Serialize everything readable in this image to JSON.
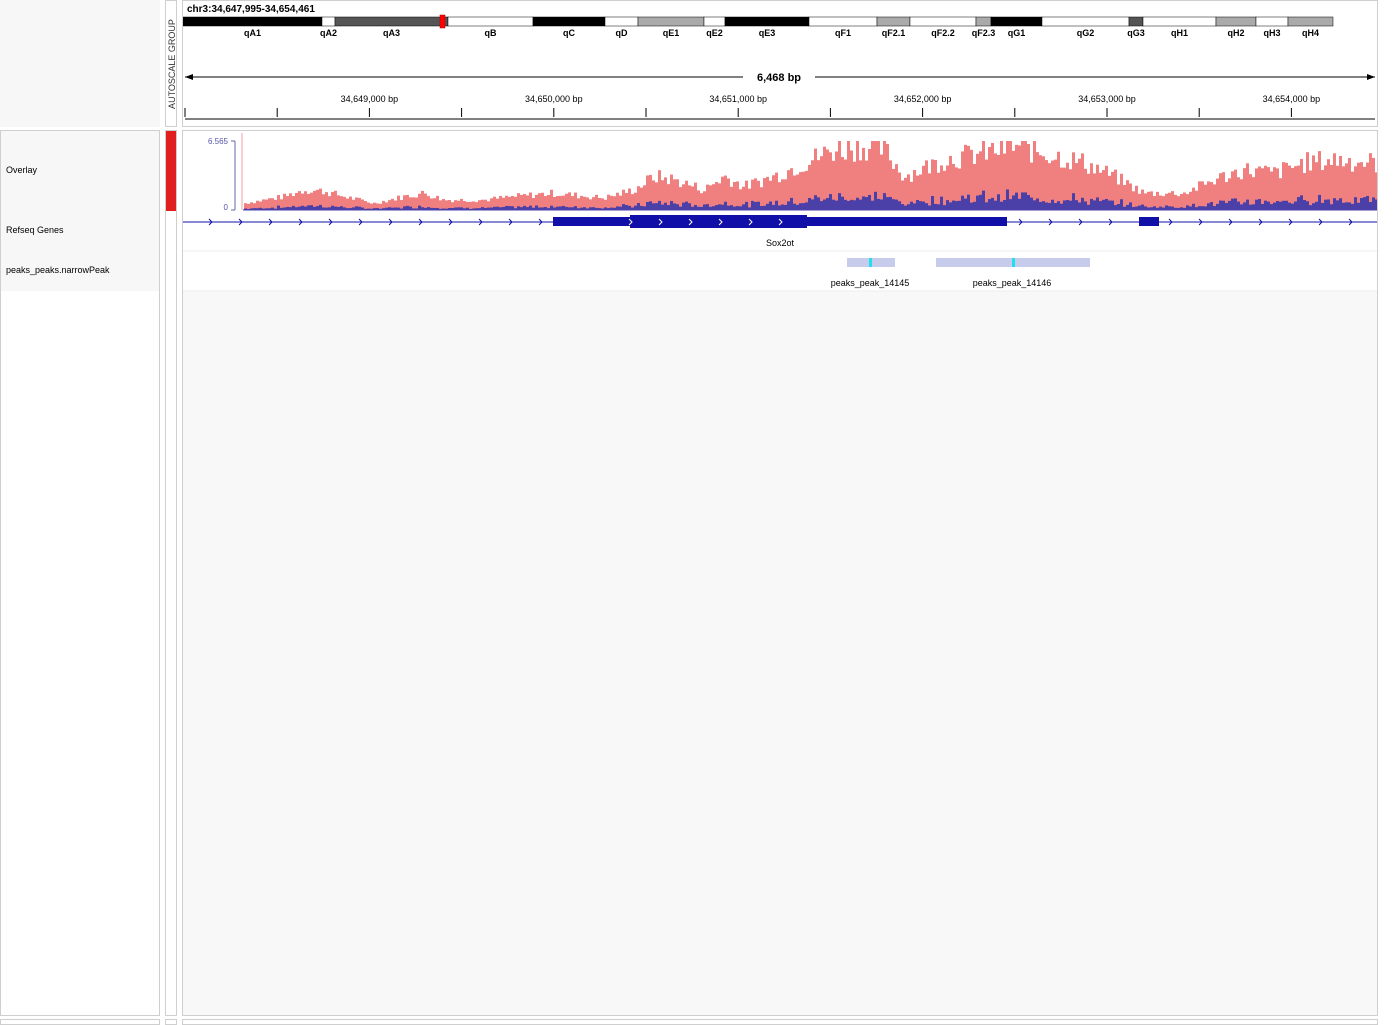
{
  "locus": "chr3:34,647,995-34,654,461",
  "span_label": "6,468 bp",
  "attribute_header": "AUTOSCALE GROUP",
  "colors": {
    "attribute_cell": "#e02020",
    "overlay_series_1": "#f08080",
    "overlay_series_2": "#4b3fa8",
    "gene": "#1010a8",
    "peak": "#c8ccec",
    "summit": "#20e0f0"
  },
  "cytobands": [
    {
      "name": "qA1",
      "stain": "black"
    },
    {
      "name": "qA2",
      "stain": "white"
    },
    {
      "name": "qA3",
      "stain": "darkgray"
    },
    {
      "name": "qB",
      "stain": "white"
    },
    {
      "name": "qC",
      "stain": "black"
    },
    {
      "name": "qD",
      "stain": "white"
    },
    {
      "name": "qE1",
      "stain": "gray"
    },
    {
      "name": "qE2",
      "stain": "white"
    },
    {
      "name": "qE3",
      "stain": "black"
    },
    {
      "name": "qF1",
      "stain": "white"
    },
    {
      "name": "qF2.1",
      "stain": "gray"
    },
    {
      "name": "qF2.2",
      "stain": "white"
    },
    {
      "name": "qF2.3",
      "stain": "gray"
    },
    {
      "name": "qG1",
      "stain": "black"
    },
    {
      "name": "qG2",
      "stain": "white"
    },
    {
      "name": "qG3",
      "stain": "darkgray"
    },
    {
      "name": "qH1",
      "stain": "white"
    },
    {
      "name": "qH2",
      "stain": "gray"
    },
    {
      "name": "qH3",
      "stain": "white"
    },
    {
      "name": "qH4",
      "stain": "gray"
    }
  ],
  "ruler_ticks": [
    "34,649,000 bp",
    "34,650,000 bp",
    "34,651,000 bp",
    "34,652,000 bp",
    "34,653,000 bp",
    "34,654,000 bp"
  ],
  "tracks": [
    {
      "name": "Overlay",
      "scale_max": "6.565",
      "scale_min": "0"
    },
    {
      "name": "Refseq Genes",
      "gene_label": "Sox2ot"
    },
    {
      "name": "peaks_peaks.narrowPeak",
      "peaks": [
        "peaks_peak_14145",
        "peaks_peak_14146"
      ]
    }
  ]
}
